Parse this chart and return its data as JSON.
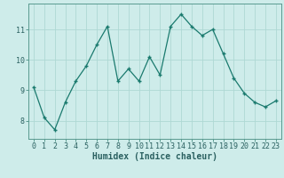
{
  "x": [
    0,
    1,
    2,
    3,
    4,
    5,
    6,
    7,
    8,
    9,
    10,
    11,
    12,
    13,
    14,
    15,
    16,
    17,
    18,
    19,
    20,
    21,
    22,
    23
  ],
  "y": [
    9.1,
    8.1,
    7.7,
    8.6,
    9.3,
    9.8,
    10.5,
    11.1,
    9.3,
    9.7,
    9.3,
    10.1,
    9.5,
    11.1,
    11.5,
    11.1,
    10.8,
    11.0,
    10.2,
    9.4,
    8.9,
    8.6,
    8.45,
    8.65
  ],
  "xlabel": "Humidex (Indice chaleur)",
  "background_color": "#ceecea",
  "grid_color": "#aed8d4",
  "line_color": "#1a7a6e",
  "ylim": [
    7.4,
    11.85
  ],
  "yticks": [
    8,
    9,
    10,
    11
  ],
  "xticks": [
    0,
    1,
    2,
    3,
    4,
    5,
    6,
    7,
    8,
    9,
    10,
    11,
    12,
    13,
    14,
    15,
    16,
    17,
    18,
    19,
    20,
    21,
    22,
    23
  ],
  "tick_color": "#2a6060",
  "label_fontsize": 6.0,
  "xlabel_fontsize": 7.0
}
